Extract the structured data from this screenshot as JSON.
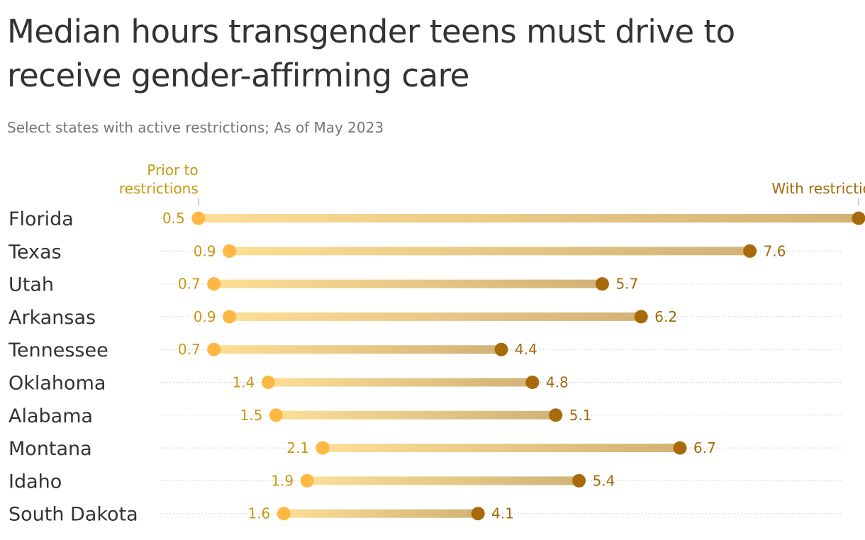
{
  "title": "Median hours transgender teens must drive to receive gender-affirming care",
  "subtitle": "Select states with active restrictions; As of May 2023",
  "colors": {
    "start": "#FDB843",
    "end": "#A86A0B",
    "bar_start": "#FDDE96",
    "bar_end": "#D2B276",
    "start_label": "#C9980E",
    "end_label": "#A36A0A",
    "text": "#333333",
    "subtitle": "#757575",
    "gridline": "#C8C8C8"
  },
  "chart_data": {
    "type": "dumbbell",
    "title": "Median hours transgender teens must drive to receive gender-affirming care",
    "subtitle": "Select states with active restrictions; As of May 2023",
    "xlim": [
      0,
      9
    ],
    "grid": true,
    "legend": {
      "start_label": [
        "Prior to",
        "restrictions"
      ],
      "end_label": "With restrictions"
    },
    "categories": [
      "Florida",
      "Texas",
      "Utah",
      "Arkansas",
      "Tennessee",
      "Oklahoma",
      "Alabama",
      "Montana",
      "Idaho",
      "South Dakota"
    ],
    "series": [
      {
        "name": "Prior to restrictions",
        "values": [
          0.5,
          0.9,
          0.7,
          0.9,
          0.7,
          1.4,
          1.5,
          2.1,
          1.9,
          1.6
        ]
      },
      {
        "name": "With restrictions",
        "values": [
          9,
          7.6,
          5.7,
          6.2,
          4.4,
          4.8,
          5.1,
          6.7,
          5.4,
          4.1
        ]
      }
    ]
  }
}
